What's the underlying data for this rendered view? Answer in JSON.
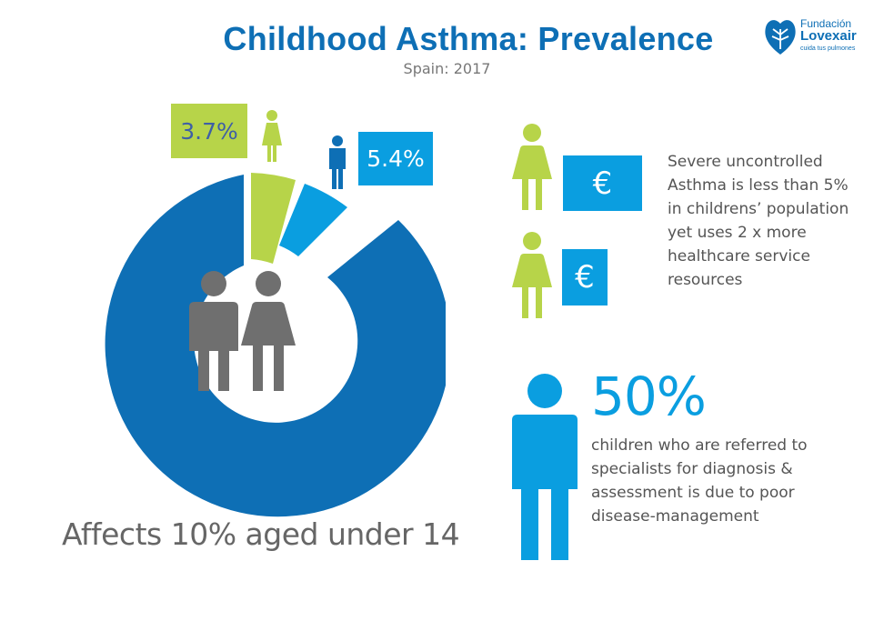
{
  "header": {
    "title": "Childhood Asthma: Prevalence",
    "subtitle": "Spain: 2017"
  },
  "logo": {
    "line1": "Fundación",
    "line2": "Lovexair",
    "line3": "cuida tus pulmones"
  },
  "prevalence": {
    "girls_label": "3.7%",
    "boys_label": "5.4%",
    "affects_text": "Affects 10% aged under 14"
  },
  "severe": {
    "euro_symbol": "€",
    "text_lines": [
      "Severe uncontrolled",
      "Asthma  is less than 5%",
      "in childrens’ population",
      "yet uses 2 x more",
      "healthcare service",
      "resources"
    ]
  },
  "referral": {
    "value": "50%",
    "text_lines": [
      "children who are referred to",
      "specialists for diagnosis &",
      "assessment is due to poor",
      "disease-management"
    ]
  },
  "colors": {
    "dark_blue": "#0e6fb5",
    "light_blue": "#0a9ee0",
    "green": "#b7d449",
    "grey_icon": "#6f6f6f"
  },
  "icons": [
    "female-icon",
    "male-icon",
    "euro-icon",
    "logo-heart-icon"
  ]
}
